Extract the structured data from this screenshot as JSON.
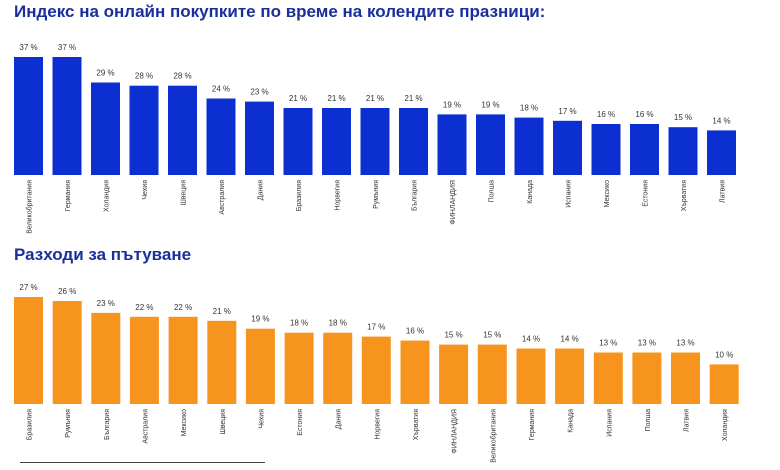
{
  "chart_data": [
    {
      "type": "bar",
      "title": "Индекс на онлайн покупките по време на колендите празници",
      "title_suffix": ":",
      "color": "#0b2fd0",
      "categories": [
        "Великобритания",
        "Германия",
        "Холандия",
        "Чехия",
        "Швеция",
        "Австралия",
        "Дания",
        "Бразилия",
        "Норвегия",
        "Румъния",
        "България",
        "ФИНЛАНДИЯ",
        "Полша",
        "Канада",
        "Испания",
        "Мексико",
        "Естония",
        "Хърватия",
        "Латвия"
      ],
      "values": [
        37,
        37,
        29,
        28,
        28,
        24,
        23,
        21,
        21,
        21,
        21,
        19,
        19,
        18,
        17,
        16,
        16,
        15,
        14
      ],
      "value_labels": [
        "37 %",
        "37 %",
        "29 %",
        "28 %",
        "28 %",
        "24 %",
        "23 %",
        "21 %",
        "21 %",
        "21 %",
        "21 %",
        "19 %",
        "19 %",
        "18 %",
        "17 %",
        "16 %",
        "16 %",
        "15 %",
        "14 %"
      ],
      "grid": false,
      "legend": "none"
    },
    {
      "type": "bar",
      "title": "Разходи за пътуване",
      "color": "#f7941d",
      "categories": [
        "Бразилия",
        "Румъния",
        "България",
        "Австралия",
        "Мексико",
        "Швеция",
        "Чехия",
        "Естония",
        "Дания",
        "Норвегия",
        "Хърватия",
        "ФИНЛАНДИЯ",
        "Великобритания",
        "Германия",
        "Канада",
        "Испания",
        "Полша",
        "Латвия",
        "Холандия"
      ],
      "values": [
        27,
        26,
        23,
        22,
        22,
        21,
        19,
        18,
        18,
        17,
        16,
        15,
        15,
        14,
        14,
        13,
        13,
        13,
        10
      ],
      "value_labels": [
        "27 %",
        "26 %",
        "23 %",
        "22 %",
        "22 %",
        "21 %",
        "19 %",
        "18 %",
        "18 %",
        "17 %",
        "16 %",
        "15 %",
        "15 %",
        "14 %",
        "14 %",
        "13 %",
        "13 %",
        "13 %",
        "10 %"
      ],
      "grid": false,
      "legend": "none"
    }
  ]
}
